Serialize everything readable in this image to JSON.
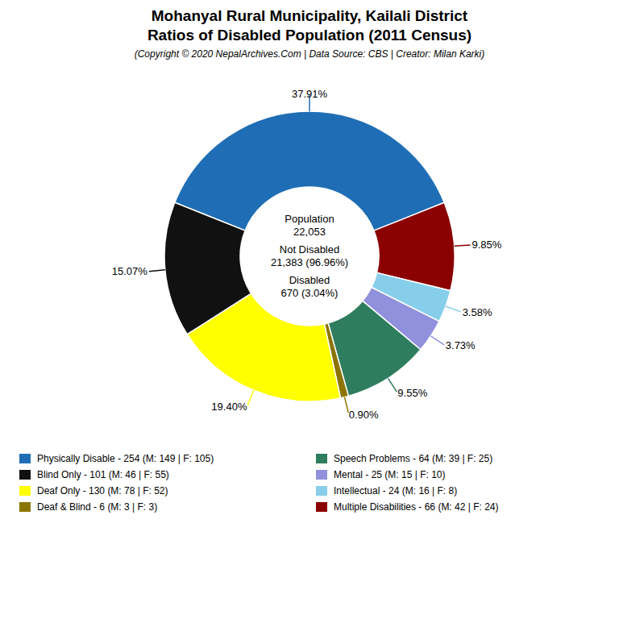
{
  "chart_data": {
    "type": "pie",
    "title": [
      "Mohanyal Rural Municipality, Kailali District",
      "Ratios of Disabled Population (2011 Census)"
    ],
    "subtitle": "(Copyright © 2020 NepalArchives.Com | Data Source: CBS | Creator: Milan Karki)",
    "categories": [
      "Physically Disable - 254 (M: 149 | F: 105)",
      "Multiple Disabilities - 66 (M: 42 | F: 24)",
      "Intellectual - 24 (M: 16 | F: 8)",
      "Mental - 25 (M: 15 | F: 10)",
      "Speech Problems - 64 (M: 39 | F: 25)",
      "Deaf & Blind - 6 (M: 3 | F: 3)",
      "Deaf Only - 130 (M: 78 | F: 52)",
      "Blind Only - 101 (M: 46 | F: 55)"
    ],
    "values": [
      37.91,
      9.85,
      3.58,
      3.73,
      9.55,
      0.9,
      19.4,
      15.07
    ],
    "value_labels": [
      "37.91%",
      "9.85%",
      "3.58%",
      "3.73%",
      "9.55%",
      "0.90%",
      "19.40%",
      "15.07%"
    ],
    "colors": [
      "#1f6eb5",
      "#8b0000",
      "#87ceeb",
      "#9090dd",
      "#2e7d5e",
      "#8b7500",
      "#ffff00",
      "#111111"
    ],
    "annotations": [
      "Population",
      "22,053",
      "Not Disabled",
      "21,383 (96.96%)",
      "Disabled",
      "670 (3.04%)"
    ],
    "legend_entries": [
      "Physically Disable - 254 (M: 149 | F: 105)",
      "Blind Only - 101 (M: 46 | F: 55)",
      "Deaf Only - 130 (M: 78 | F: 52)",
      "Deaf & Blind - 6 (M: 3 | F: 3)",
      "Speech Problems - 64 (M: 39 | F: 25)",
      "Mental - 25 (M: 15 | F: 10)",
      "Intellectual - 24 (M: 16 | F: 8)",
      "Multiple Disabilities - 66 (M: 42 | F: 24)"
    ],
    "legend": "bottom",
    "data_labels": true
  }
}
